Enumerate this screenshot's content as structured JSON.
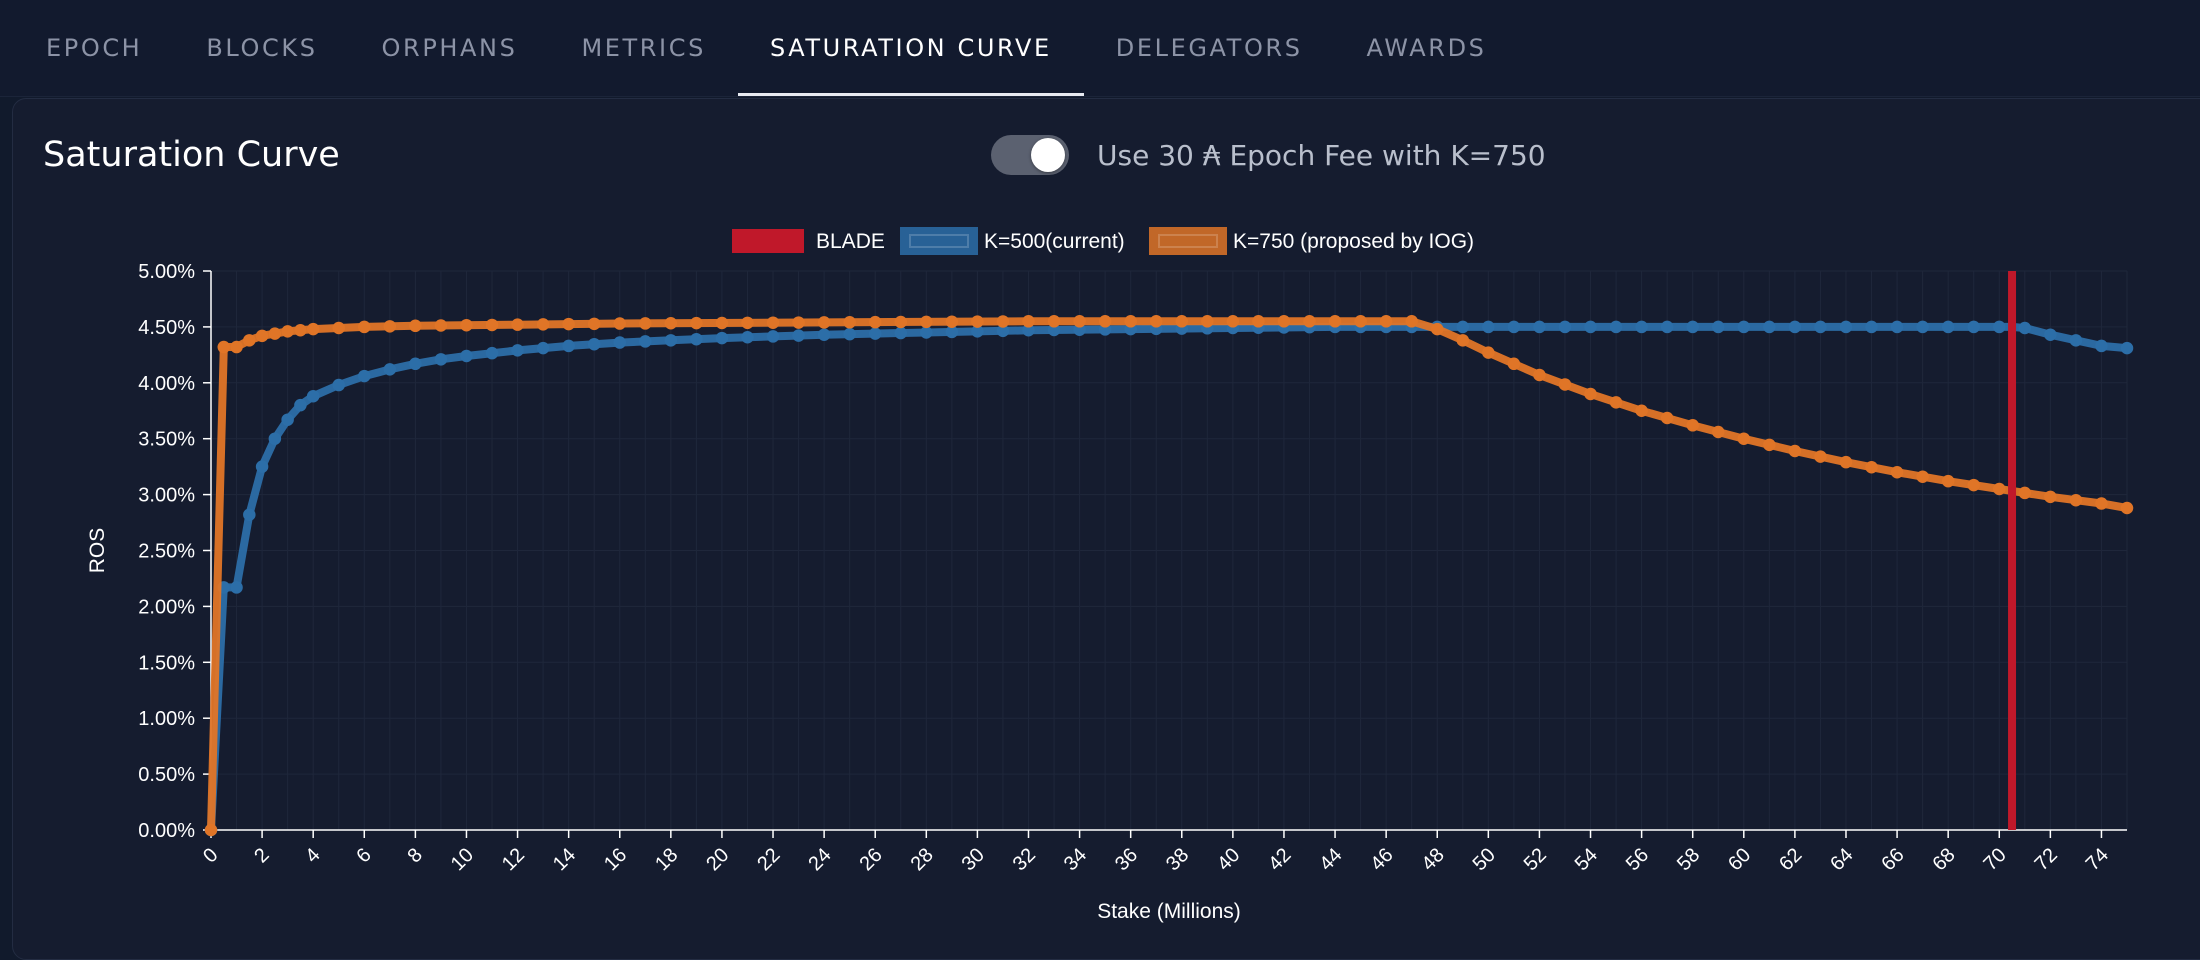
{
  "tabs": [
    {
      "label": "EPOCH",
      "active": false
    },
    {
      "label": "BLOCKS",
      "active": false
    },
    {
      "label": "ORPHANS",
      "active": false
    },
    {
      "label": "METRICS",
      "active": false
    },
    {
      "label": "SATURATION CURVE",
      "active": true
    },
    {
      "label": "DELEGATORS",
      "active": false
    },
    {
      "label": "AWARDS",
      "active": false
    }
  ],
  "card": {
    "title": "Saturation Curve",
    "toggle_label": "Use 30 ₳ Epoch Fee with K=750",
    "toggle_on": true
  },
  "colors": {
    "blade": "#c0182a",
    "k500": "#2c6ea8",
    "k750": "#e07527",
    "background": "#151c2f",
    "grid": "#1f273b"
  },
  "chart_data": {
    "type": "line",
    "xlabel": "Stake (Millions)",
    "ylabel": "ROS",
    "xlim": [
      0,
      75
    ],
    "ylim": [
      0,
      5
    ],
    "x_ticks": [
      "0",
      "2",
      "4",
      "6",
      "8",
      "10",
      "12",
      "14",
      "16",
      "18",
      "20",
      "22",
      "24",
      "26",
      "28",
      "30",
      "32",
      "34",
      "36",
      "38",
      "40",
      "42",
      "44",
      "46",
      "48",
      "50",
      "52",
      "54",
      "56",
      "58",
      "60",
      "62",
      "64",
      "66",
      "68",
      "70",
      "72",
      "74"
    ],
    "y_ticks": [
      "0.00%",
      "0.50%",
      "1.00%",
      "1.50%",
      "2.00%",
      "2.50%",
      "3.00%",
      "3.50%",
      "4.00%",
      "4.50%",
      "5.00%"
    ],
    "legend": {
      "placement": "top-center"
    },
    "grid": true,
    "blade": {
      "label": "BLADE",
      "x": 70.5
    },
    "series": [
      {
        "name": "K=500(current)",
        "points": [
          [
            0,
            0
          ],
          [
            0.5,
            2.17
          ],
          [
            1,
            2.17
          ],
          [
            1.5,
            2.82
          ],
          [
            2,
            3.25
          ],
          [
            2.5,
            3.5
          ],
          [
            3,
            3.67
          ],
          [
            3.5,
            3.8
          ],
          [
            4,
            3.88
          ],
          [
            5,
            3.98
          ],
          [
            6,
            4.06
          ],
          [
            7,
            4.12
          ],
          [
            8,
            4.17
          ],
          [
            9,
            4.21
          ],
          [
            10,
            4.24
          ],
          [
            12,
            4.29
          ],
          [
            14,
            4.33
          ],
          [
            16,
            4.36
          ],
          [
            18,
            4.38
          ],
          [
            20,
            4.4
          ],
          [
            24,
            4.43
          ],
          [
            28,
            4.45
          ],
          [
            32,
            4.47
          ],
          [
            36,
            4.48
          ],
          [
            40,
            4.49
          ],
          [
            44,
            4.5
          ],
          [
            48,
            4.5
          ],
          [
            52,
            4.5
          ],
          [
            56,
            4.5
          ],
          [
            60,
            4.5
          ],
          [
            64,
            4.5
          ],
          [
            68,
            4.5
          ],
          [
            70.5,
            4.5
          ],
          [
            71,
            4.49
          ],
          [
            72,
            4.43
          ],
          [
            73,
            4.38
          ],
          [
            74,
            4.33
          ],
          [
            75,
            4.31
          ]
        ]
      },
      {
        "name": "K=750 (proposed by IOG)",
        "points": [
          [
            0,
            0
          ],
          [
            0.5,
            4.32
          ],
          [
            1,
            4.32
          ],
          [
            1.5,
            4.38
          ],
          [
            2,
            4.42
          ],
          [
            3,
            4.46
          ],
          [
            4,
            4.48
          ],
          [
            6,
            4.5
          ],
          [
            8,
            4.51
          ],
          [
            12,
            4.52
          ],
          [
            16,
            4.53
          ],
          [
            24,
            4.54
          ],
          [
            32,
            4.55
          ],
          [
            40,
            4.55
          ],
          [
            47,
            4.55
          ],
          [
            48,
            4.48
          ],
          [
            49,
            4.38
          ],
          [
            50,
            4.27
          ],
          [
            52,
            4.07
          ],
          [
            54,
            3.9
          ],
          [
            56,
            3.75
          ],
          [
            58,
            3.62
          ],
          [
            60,
            3.5
          ],
          [
            62,
            3.39
          ],
          [
            64,
            3.29
          ],
          [
            66,
            3.2
          ],
          [
            68,
            3.12
          ],
          [
            70,
            3.05
          ],
          [
            72,
            2.98
          ],
          [
            74,
            2.92
          ],
          [
            75,
            2.88
          ]
        ]
      }
    ]
  }
}
